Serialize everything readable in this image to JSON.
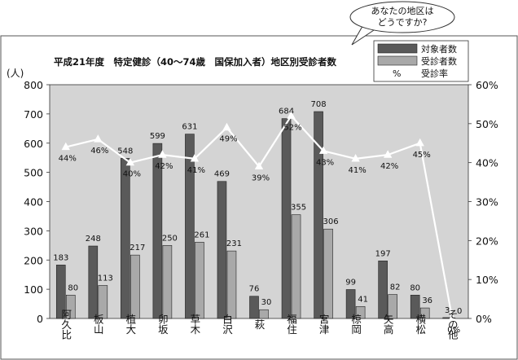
{
  "callout": {
    "line1": "あなたの地区は",
    "line2": "どうですか?"
  },
  "chart_data": {
    "type": "bar",
    "title": "平成21年度　特定健診（40〜74歳　国保加入者）地区別受診者数",
    "ylabel_left": "(人)",
    "ylim_left": [
      0,
      800
    ],
    "yticks_left": [
      "0",
      "100",
      "200",
      "300",
      "400",
      "500",
      "600",
      "700",
      "800"
    ],
    "ylim_right": [
      0,
      60
    ],
    "yticks_right": [
      "0%",
      "10%",
      "20%",
      "30%",
      "40%",
      "50%",
      "60%"
    ],
    "grid": false,
    "legend_position": "top-right",
    "categories": [
      "阿久比",
      "板山",
      "植大",
      "卯坂",
      "草木",
      "白沢",
      "萩",
      "福住",
      "宮津",
      "椋岡",
      "矢高",
      "横松",
      "その他"
    ],
    "series": [
      {
        "name": "対象者数",
        "kind": "bar",
        "color": "#5a5a5a",
        "values": [
          183,
          248,
          548,
          599,
          631,
          469,
          76,
          684,
          708,
          99,
          197,
          80,
          3
        ],
        "labels": [
          "183",
          "248",
          "548",
          "599",
          "631",
          "469",
          "76",
          "684",
          "708",
          "99",
          "197",
          "80",
          "3"
        ]
      },
      {
        "name": "受診者数",
        "kind": "bar",
        "color": "#a9a9a9",
        "values": [
          80,
          113,
          217,
          250,
          261,
          231,
          30,
          355,
          306,
          41,
          82,
          36,
          0
        ],
        "labels": [
          "80",
          "113",
          "217",
          "250",
          "261",
          "231",
          "30",
          "355",
          "306",
          "41",
          "82",
          "36",
          "0"
        ]
      },
      {
        "name": "受診率",
        "kind": "line",
        "color": "#ffffff",
        "legend_symbol": "%",
        "values": [
          44,
          46,
          40,
          42,
          41,
          49,
          39,
          52,
          43,
          41,
          42,
          45,
          0
        ],
        "labels": [
          "44%",
          "46%",
          "40%",
          "42%",
          "41%",
          "49%",
          "39%",
          "52%",
          "43%",
          "41%",
          "42%",
          "45%",
          "0%"
        ]
      }
    ]
  }
}
